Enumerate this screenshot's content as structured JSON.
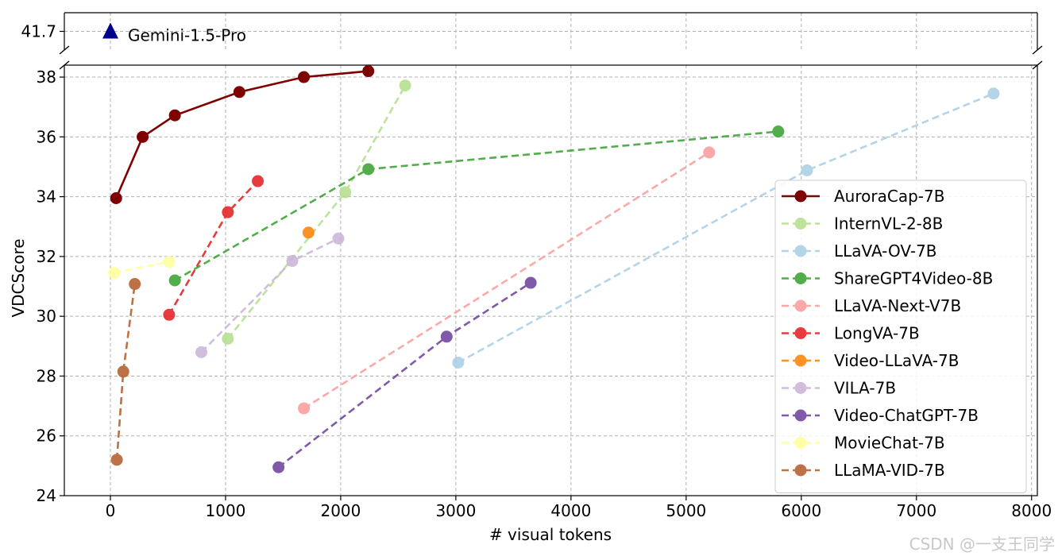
{
  "watermark": "CSDN @一支王同学",
  "chart_data": {
    "type": "line",
    "xlabel": "# visual tokens",
    "ylabel": "VDCScore",
    "xlim": [
      -400,
      8050
    ],
    "ylim": [
      24,
      38.4
    ],
    "top_panel_ylim": [
      41.0,
      42.4
    ],
    "grid": true,
    "grid_style": "dashed",
    "legend_placement": "right",
    "x_ticks": [
      0,
      1000,
      2000,
      3000,
      4000,
      5000,
      6000,
      7000,
      8000
    ],
    "x_tick_labels": [
      "0",
      "1000",
      "2000",
      "3000",
      "4000",
      "5000",
      "6000",
      "7000",
      "8000"
    ],
    "y_ticks": [
      24,
      26,
      28,
      30,
      32,
      34,
      36,
      38
    ],
    "y_tick_labels": [
      "24",
      "26",
      "28",
      "30",
      "32",
      "34",
      "36",
      "38"
    ],
    "top_y_ticks": [
      41.7
    ],
    "top_y_tick_labels": [
      "41.7"
    ],
    "annotation": {
      "label": "Gemini-1.5-Pro",
      "x": 0,
      "y": 41.7,
      "marker": "triangle",
      "color": "#00008b"
    },
    "series": [
      {
        "name": "AuroraCap-7B",
        "color": "#7f0000",
        "style": "solid",
        "alpha": 1.0,
        "x": [
          50,
          280,
          560,
          1120,
          1680,
          2240
        ],
        "y": [
          33.95,
          36.0,
          36.72,
          37.5,
          38.0,
          38.2
        ]
      },
      {
        "name": "InternVL-2-8B",
        "color": "#b2df8a",
        "style": "dashed",
        "alpha": 0.85,
        "x": [
          1020,
          2040,
          2560
        ],
        "y": [
          29.25,
          34.15,
          37.72
        ]
      },
      {
        "name": "LLaVA-OV-7B",
        "color": "#a6cee3",
        "style": "dashed",
        "alpha": 0.85,
        "x": [
          3020,
          6050,
          7670
        ],
        "y": [
          28.45,
          34.88,
          37.45
        ]
      },
      {
        "name": "ShareGPT4Video-8B",
        "color": "#33a02c",
        "style": "dashed",
        "alpha": 0.85,
        "x": [
          560,
          2240,
          5800
        ],
        "y": [
          31.2,
          34.92,
          36.18
        ]
      },
      {
        "name": "LLaVA-Next-V7B",
        "color": "#fb9a99",
        "style": "dashed",
        "alpha": 0.85,
        "x": [
          1680,
          5200
        ],
        "y": [
          26.92,
          35.48
        ]
      },
      {
        "name": "LongVA-7B",
        "color": "#e31a1c",
        "style": "dashed",
        "alpha": 0.85,
        "x": [
          510,
          1020,
          1280
        ],
        "y": [
          30.05,
          33.48,
          34.52
        ]
      },
      {
        "name": "Video-LLaVA-7B",
        "color": "#ff7f00",
        "style": "dashed",
        "alpha": 0.85,
        "x": [
          1720
        ],
        "y": [
          32.8
        ]
      },
      {
        "name": "VILA-7B",
        "color": "#cab2d6",
        "style": "dashed",
        "alpha": 0.85,
        "x": [
          790,
          1580,
          1980
        ],
        "y": [
          28.8,
          31.85,
          32.6
        ]
      },
      {
        "name": "Video-ChatGPT-7B",
        "color": "#6a3d9a",
        "style": "dashed",
        "alpha": 0.85,
        "x": [
          1460,
          2920,
          3650
        ],
        "y": [
          24.95,
          29.32,
          31.12
        ]
      },
      {
        "name": "MovieChat-7B",
        "color": "#ffff99",
        "style": "dashed",
        "alpha": 0.85,
        "x": [
          32,
          510
        ],
        "y": [
          31.45,
          31.82
        ]
      },
      {
        "name": "LLaMA-VID-7B",
        "color": "#b15928",
        "style": "dashed",
        "alpha": 0.85,
        "x": [
          56,
          112,
          212
        ],
        "y": [
          25.2,
          28.15,
          31.08
        ]
      }
    ]
  }
}
